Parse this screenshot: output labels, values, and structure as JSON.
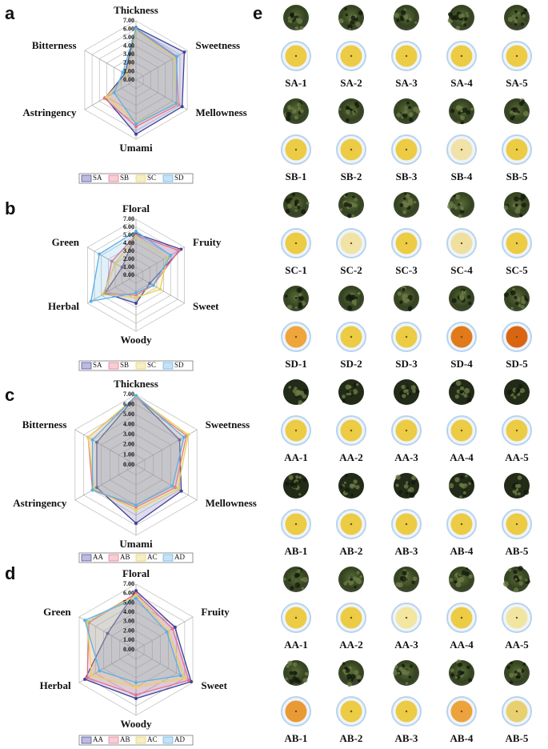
{
  "chart_data": [
    {
      "type": "radar",
      "label": "a",
      "categories": [
        "Thickness",
        "Sweetness",
        "Mellowness",
        "Umami",
        "Astringency",
        "Bitterness"
      ],
      "ylim": [
        0,
        7
      ],
      "yticks": [
        {
          "value": 0,
          "label": "0.00"
        },
        {
          "value": 1,
          "label": "1.00"
        },
        {
          "value": 2,
          "label": "2.00"
        },
        {
          "value": 3,
          "label": "3.00"
        },
        {
          "value": 4,
          "label": "4.00"
        },
        {
          "value": 5,
          "label": "5.00"
        },
        {
          "value": 6,
          "label": "6.00"
        },
        {
          "value": 7,
          "label": "7.00"
        }
      ],
      "legend": "bottom",
      "series": [
        {
          "name": "SA",
          "color": "#40409a",
          "values": [
            6.2,
            6.6,
            6.3,
            6.4,
            4.2,
            1.5
          ]
        },
        {
          "name": "SB",
          "color": "#e8708a",
          "values": [
            6.0,
            5.5,
            5.8,
            5.5,
            4.3,
            1.2
          ]
        },
        {
          "name": "SC",
          "color": "#e6d25a",
          "values": [
            5.9,
            5.2,
            5.6,
            5.0,
            4.0,
            1.3
          ]
        },
        {
          "name": "SD",
          "color": "#5ab0e8",
          "values": [
            6.1,
            5.6,
            5.5,
            5.2,
            3.0,
            1.8
          ]
        }
      ]
    },
    {
      "type": "radar",
      "label": "b",
      "categories": [
        "Floral",
        "Fruity",
        "Sweet",
        "Woody",
        "Herbal",
        "Green"
      ],
      "ylim": [
        0,
        7
      ],
      "yticks": [
        {
          "value": 0,
          "label": "0.00"
        },
        {
          "value": 1,
          "label": "1.00"
        },
        {
          "value": 2,
          "label": "2.00"
        },
        {
          "value": 3,
          "label": "3.00"
        },
        {
          "value": 4,
          "label": "4.00"
        },
        {
          "value": 5,
          "label": "5.00"
        },
        {
          "value": 6,
          "label": "6.00"
        },
        {
          "value": 7,
          "label": "7.00"
        }
      ],
      "legend": "bottom",
      "series": [
        {
          "name": "SA",
          "color": "#40409a",
          "values": [
            5.2,
            6.5,
            2.0,
            3.5,
            4.5,
            2.0
          ]
        },
        {
          "name": "SB",
          "color": "#e8708a",
          "values": [
            5.0,
            6.2,
            2.5,
            2.5,
            4.5,
            3.5
          ]
        },
        {
          "name": "SC",
          "color": "#e6d25a",
          "values": [
            4.8,
            4.5,
            3.5,
            2.8,
            4.8,
            3.0
          ]
        },
        {
          "name": "SD",
          "color": "#5ab0e8",
          "values": [
            5.5,
            5.0,
            2.5,
            2.2,
            6.5,
            5.3
          ]
        }
      ]
    },
    {
      "type": "radar",
      "label": "c",
      "categories": [
        "Thickness",
        "Sweetness",
        "Mellowness",
        "Umami",
        "Astringency",
        "Bitterness"
      ],
      "ylim": [
        0,
        7
      ],
      "yticks": [
        {
          "value": 0,
          "label": "0.00"
        },
        {
          "value": 1,
          "label": "1.00"
        },
        {
          "value": 2,
          "label": "2.00"
        },
        {
          "value": 3,
          "label": "3.00"
        },
        {
          "value": 4,
          "label": "4.00"
        },
        {
          "value": 5,
          "label": "5.00"
        },
        {
          "value": 6,
          "label": "6.00"
        },
        {
          "value": 7,
          "label": "7.00"
        }
      ],
      "legend": "bottom",
      "series": [
        {
          "name": "AA",
          "color": "#40409a",
          "values": [
            6.8,
            5.0,
            5.2,
            5.8,
            4.5,
            4.5
          ]
        },
        {
          "name": "AB",
          "color": "#e8708a",
          "values": [
            6.7,
            5.8,
            4.5,
            4.2,
            5.0,
            5.5
          ]
        },
        {
          "name": "AC",
          "color": "#e6d25a",
          "values": [
            6.8,
            6.0,
            4.8,
            4.5,
            4.8,
            5.5
          ]
        },
        {
          "name": "AD",
          "color": "#5ab0e8",
          "values": [
            6.9,
            5.5,
            4.2,
            4.0,
            5.0,
            5.0
          ]
        }
      ]
    },
    {
      "type": "radar",
      "label": "d",
      "categories": [
        "Floral",
        "Fruity",
        "Sweet",
        "Woody",
        "Herbal",
        "Green"
      ],
      "ylim": [
        0,
        7
      ],
      "yticks": [
        {
          "value": 0,
          "label": "0.00"
        },
        {
          "value": 1,
          "label": "1.00"
        },
        {
          "value": 2,
          "label": "2.00"
        },
        {
          "value": 3,
          "label": "3.00"
        },
        {
          "value": 4,
          "label": "4.00"
        },
        {
          "value": 5,
          "label": "5.00"
        },
        {
          "value": 6,
          "label": "6.00"
        },
        {
          "value": 7,
          "label": "7.00"
        }
      ],
      "legend": "bottom",
      "series": [
        {
          "name": "AA",
          "color": "#40409a",
          "values": [
            6.3,
            4.8,
            6.8,
            5.2,
            6.3,
            3.5
          ]
        },
        {
          "name": "AB",
          "color": "#e8708a",
          "values": [
            6.0,
            4.5,
            6.5,
            4.8,
            6.0,
            5.8
          ]
        },
        {
          "name": "AC",
          "color": "#e6d25a",
          "values": [
            5.8,
            4.0,
            6.0,
            4.0,
            5.5,
            6.0
          ]
        },
        {
          "name": "AD",
          "color": "#5ab0e8",
          "values": [
            5.5,
            3.8,
            5.5,
            3.5,
            4.5,
            6.3
          ]
        }
      ]
    }
  ],
  "photo_panel": {
    "label": "e",
    "rows": [
      [
        "SA-1",
        "SA-2",
        "SA-3",
        "SA-4",
        "SA-5"
      ],
      [
        "SB-1",
        "SB-2",
        "SB-3",
        "SB-4",
        "SB-5"
      ],
      [
        "SC-1",
        "SC-2",
        "SC-3",
        "SC-4",
        "SC-5"
      ],
      [
        "SD-1",
        "SD-2",
        "SD-3",
        "SD-4",
        "SD-5"
      ],
      [
        "AA-1",
        "AA-2",
        "AA-3",
        "AA-4",
        "AA-5"
      ],
      [
        "AB-1",
        "AB-2",
        "AB-3",
        "AB-4",
        "AB-5"
      ],
      [
        "AA-1",
        "AA-2",
        "AA-3",
        "AA-4",
        "AA-5"
      ],
      [
        "AB-1",
        "AB-2",
        "AB-3",
        "AB-4",
        "AB-5"
      ]
    ]
  }
}
